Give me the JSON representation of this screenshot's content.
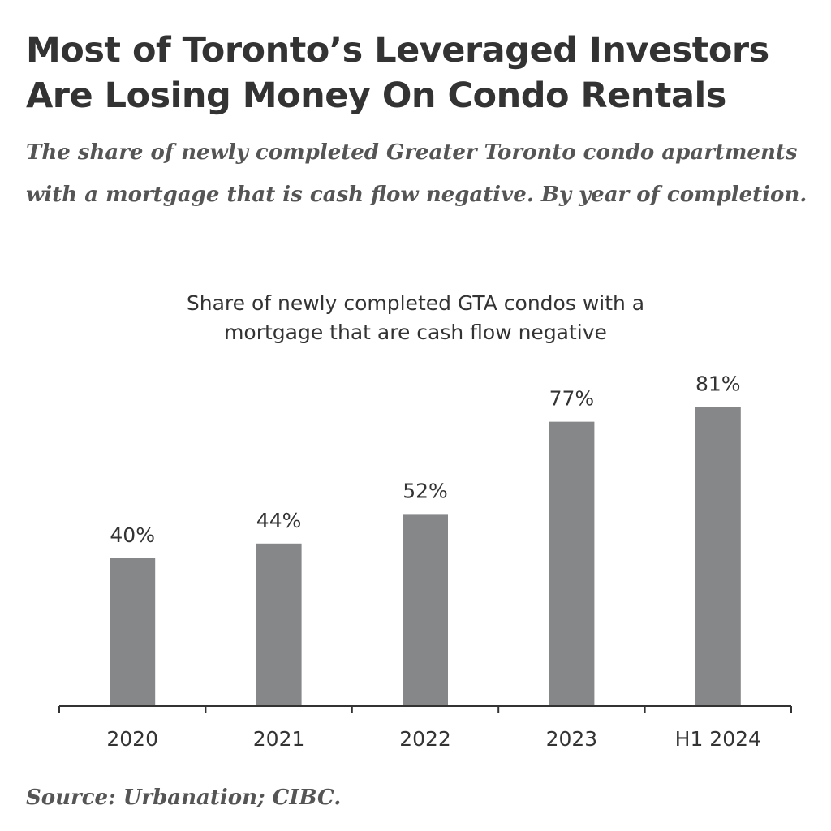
{
  "chart_data": {
    "type": "bar",
    "title": "Most of Toronto’s Leveraged Investors Are Losing Money On Condo Rentals",
    "subtitle": "The share of newly completed Greater Toronto condo apartments with a mortgage that is cash flow negative. By year of completion.",
    "chart_title": "Share of newly completed GTA condos with a mortgage that are cash flow negative",
    "categories": [
      "2020",
      "2021",
      "2022",
      "2023",
      "H1 2024"
    ],
    "values": [
      40,
      44,
      52,
      77,
      81
    ],
    "value_labels": [
      "40%",
      "44%",
      "52%",
      "77%",
      "81%"
    ],
    "color": "#868788",
    "ylim": [
      0,
      90
    ],
    "source": "Source: Urbanation; CIBC."
  }
}
